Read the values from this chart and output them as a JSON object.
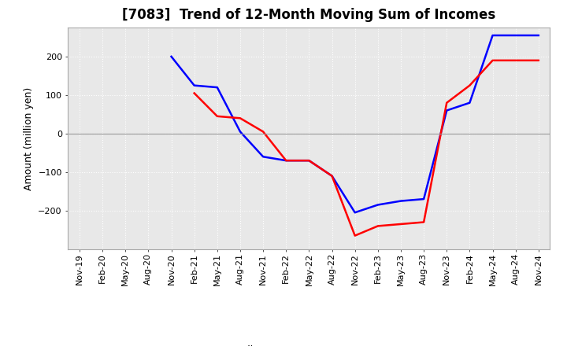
{
  "title": "[7083]  Trend of 12-Month Moving Sum of Incomes",
  "ylabel": "Amount (million yen)",
  "x_labels": [
    "Nov-19",
    "Feb-20",
    "May-20",
    "Aug-20",
    "Nov-20",
    "Feb-21",
    "May-21",
    "Aug-21",
    "Nov-21",
    "Feb-22",
    "May-22",
    "Aug-22",
    "Nov-22",
    "Feb-23",
    "May-23",
    "Aug-23",
    "Nov-23",
    "Feb-24",
    "May-24",
    "Aug-24",
    "Nov-24"
  ],
  "ordinary_income_x": [
    4,
    5,
    6,
    7,
    8,
    9,
    10,
    11,
    12,
    13,
    14,
    15,
    16,
    17,
    18,
    19,
    20
  ],
  "ordinary_income_y": [
    200,
    125,
    120,
    5,
    -60,
    -70,
    -70,
    -110,
    -205,
    -185,
    -175,
    -170,
    60,
    80,
    255,
    255,
    255
  ],
  "net_income_x": [
    5,
    6,
    7,
    8,
    9,
    10,
    11,
    12,
    13,
    14,
    15,
    16,
    17,
    18,
    19,
    20
  ],
  "net_income_y": [
    105,
    45,
    40,
    5,
    -70,
    -70,
    -110,
    -265,
    -240,
    -235,
    -230,
    80,
    125,
    190,
    190,
    190
  ],
  "ordinary_color": "#0000FF",
  "net_color": "#FF0000",
  "ylim": [
    -300,
    275
  ],
  "yticks": [
    -200,
    -100,
    0,
    100,
    200
  ],
  "background_color": "#FFFFFF",
  "plot_bg_color": "#E8E8E8",
  "grid_color": "#FFFFFF",
  "title_fontsize": 12,
  "legend_fontsize": 9
}
